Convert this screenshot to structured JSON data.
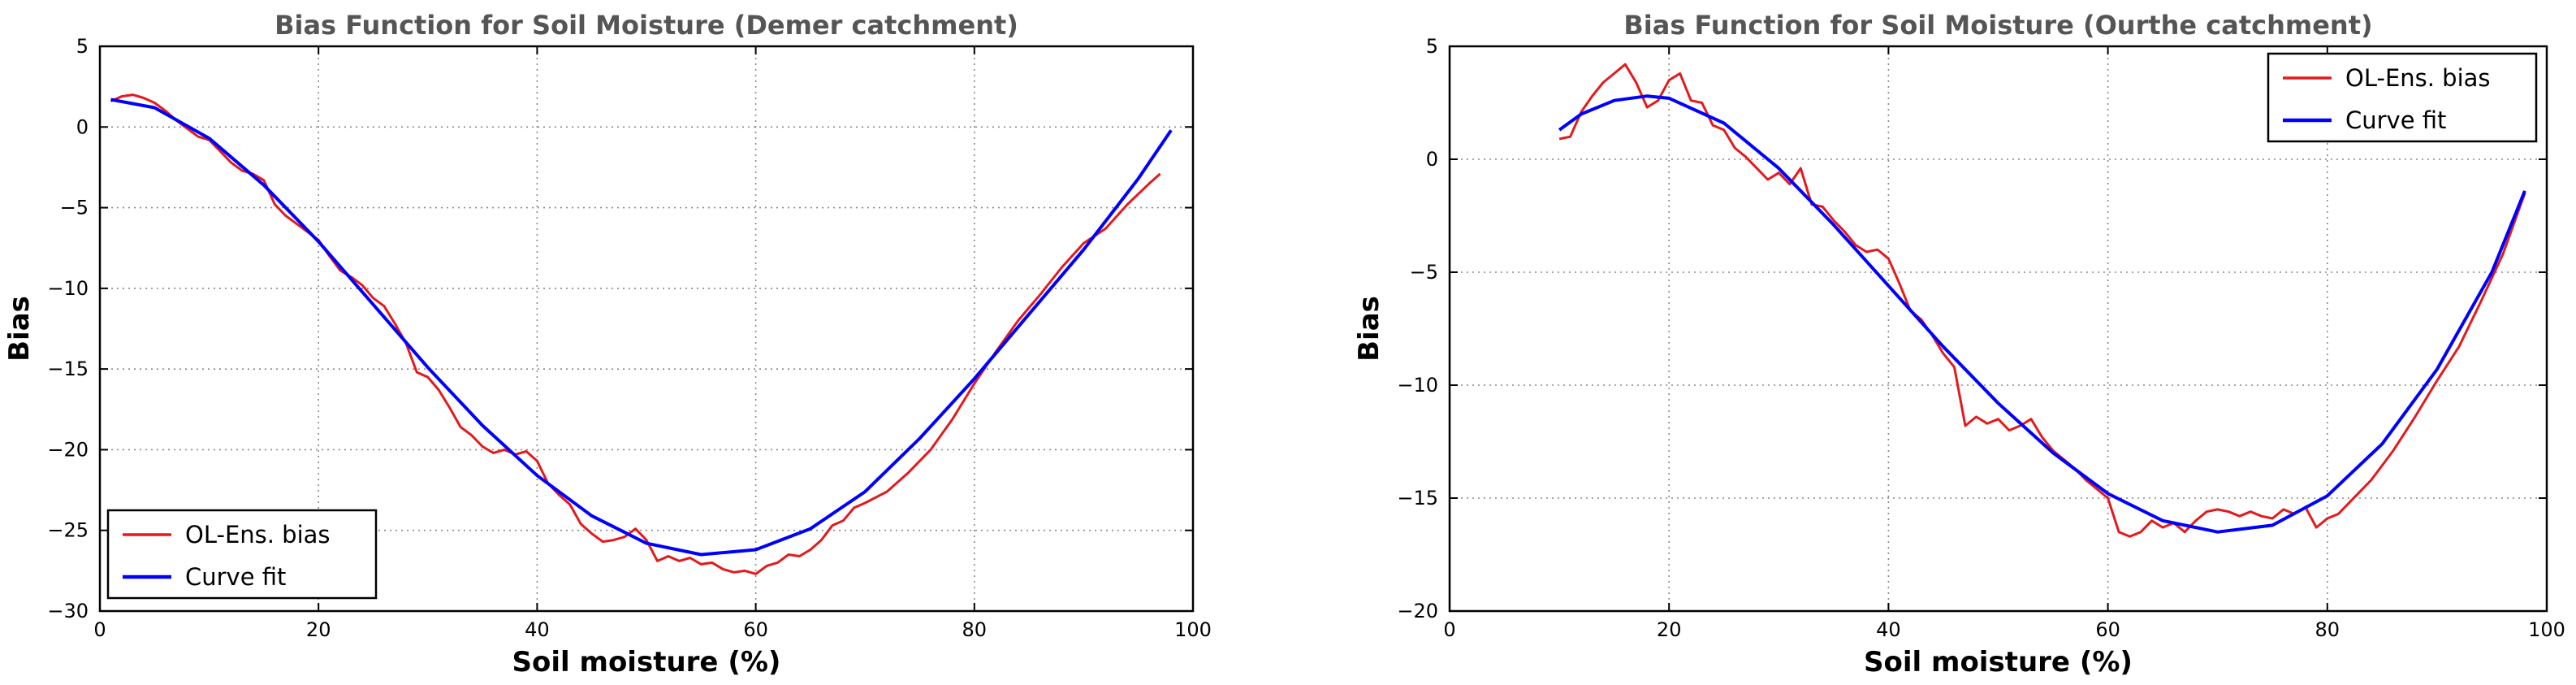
{
  "chart_data": [
    {
      "type": "line",
      "title": "Bias Function for Soil Moisture (Demer catchment)",
      "xlabel": "Soil moisture (%)",
      "ylabel": "Bias",
      "xlim": [
        0,
        100
      ],
      "ylim": [
        -30,
        5
      ],
      "xticks": [
        0,
        20,
        40,
        60,
        80,
        100
      ],
      "yticks": [
        5,
        0,
        -5,
        -10,
        -15,
        -20,
        -25,
        -30
      ],
      "grid": true,
      "legend_position": "lower-left",
      "series": [
        {
          "name": "OL-Ens. bias",
          "color": "#e31a1c",
          "x": [
            1,
            2,
            3,
            4,
            5,
            6,
            7,
            8,
            9,
            10,
            11,
            12,
            13,
            14,
            15,
            16,
            17,
            18,
            19,
            20,
            21,
            22,
            23,
            24,
            25,
            26,
            27,
            28,
            29,
            30,
            31,
            32,
            33,
            34,
            35,
            36,
            37,
            38,
            39,
            40,
            41,
            42,
            43,
            44,
            45,
            46,
            47,
            48,
            49,
            50,
            51,
            52,
            53,
            54,
            55,
            56,
            57,
            58,
            59,
            60,
            61,
            62,
            63,
            64,
            65,
            66,
            67,
            68,
            69,
            70,
            72,
            74,
            76,
            78,
            80,
            82,
            84,
            86,
            88,
            90,
            92,
            94,
            96,
            97
          ],
          "y": [
            1.6,
            1.9,
            2.0,
            1.8,
            1.5,
            1.0,
            0.4,
            -0.1,
            -0.6,
            -0.8,
            -1.5,
            -2.2,
            -2.7,
            -2.9,
            -3.3,
            -4.8,
            -5.5,
            -6.0,
            -6.5,
            -7.0,
            -8.0,
            -8.9,
            -9.3,
            -9.8,
            -10.6,
            -11.1,
            -12.2,
            -13.4,
            -15.2,
            -15.5,
            -16.3,
            -17.4,
            -18.6,
            -19.1,
            -19.8,
            -20.2,
            -20.0,
            -20.3,
            -20.1,
            -20.7,
            -22.1,
            -22.8,
            -23.4,
            -24.6,
            -25.2,
            -25.7,
            -25.6,
            -25.4,
            -24.9,
            -25.6,
            -26.9,
            -26.6,
            -26.9,
            -26.7,
            -27.1,
            -27.0,
            -27.4,
            -27.6,
            -27.5,
            -27.7,
            -27.2,
            -27.0,
            -26.5,
            -26.6,
            -26.2,
            -25.6,
            -24.7,
            -24.4,
            -23.6,
            -23.3,
            -22.6,
            -21.4,
            -20.0,
            -18.1,
            -15.9,
            -13.9,
            -12.0,
            -10.4,
            -8.7,
            -7.2,
            -6.3,
            -4.8,
            -3.5,
            -2.9
          ]
        },
        {
          "name": "Curve fit",
          "color": "#0000ff",
          "x": [
            1,
            5,
            10,
            15,
            20,
            25,
            30,
            35,
            40,
            45,
            50,
            55,
            60,
            65,
            70,
            75,
            80,
            85,
            90,
            95,
            98
          ],
          "y": [
            1.7,
            1.2,
            -0.7,
            -3.6,
            -7.1,
            -11.0,
            -14.9,
            -18.5,
            -21.6,
            -24.1,
            -25.8,
            -26.5,
            -26.2,
            -24.9,
            -22.6,
            -19.3,
            -15.6,
            -11.6,
            -7.6,
            -3.2,
            -0.2
          ]
        }
      ]
    },
    {
      "type": "line",
      "title": "Bias Function for Soil Moisture (Ourthe catchment)",
      "xlabel": "Soil moisture (%)",
      "ylabel": "Bias",
      "xlim": [
        0,
        100
      ],
      "ylim": [
        -20,
        5
      ],
      "xticks": [
        0,
        20,
        40,
        60,
        80,
        100
      ],
      "yticks": [
        5,
        0,
        -5,
        -10,
        -15,
        -20
      ],
      "grid": true,
      "legend_position": "upper-right",
      "series": [
        {
          "name": "OL-Ens. bias",
          "color": "#e31a1c",
          "x": [
            10,
            11,
            12,
            13,
            14,
            15,
            16,
            17,
            18,
            19,
            20,
            21,
            22,
            23,
            24,
            25,
            26,
            27,
            28,
            29,
            30,
            31,
            32,
            33,
            34,
            35,
            36,
            37,
            38,
            39,
            40,
            41,
            42,
            43,
            44,
            45,
            46,
            47,
            48,
            49,
            50,
            51,
            52,
            53,
            54,
            55,
            56,
            57,
            58,
            59,
            60,
            61,
            62,
            63,
            64,
            65,
            66,
            67,
            68,
            69,
            70,
            71,
            72,
            73,
            74,
            75,
            76,
            77,
            78,
            79,
            80,
            81,
            82,
            84,
            86,
            88,
            90,
            92,
            94,
            96,
            98
          ],
          "y": [
            0.9,
            1.0,
            2.1,
            2.8,
            3.4,
            3.8,
            4.2,
            3.4,
            2.3,
            2.6,
            3.5,
            3.8,
            2.6,
            2.5,
            1.5,
            1.3,
            0.5,
            0.1,
            -0.4,
            -0.9,
            -0.6,
            -1.1,
            -0.4,
            -2.0,
            -2.1,
            -2.7,
            -3.2,
            -3.8,
            -4.1,
            -4.0,
            -4.4,
            -5.5,
            -6.7,
            -7.1,
            -7.8,
            -8.6,
            -9.2,
            -11.8,
            -11.4,
            -11.7,
            -11.5,
            -12.0,
            -11.8,
            -11.5,
            -12.3,
            -12.9,
            -13.3,
            -13.7,
            -14.2,
            -14.6,
            -15.0,
            -16.5,
            -16.7,
            -16.5,
            -16.0,
            -16.3,
            -16.1,
            -16.5,
            -16.0,
            -15.6,
            -15.5,
            -15.6,
            -15.8,
            -15.6,
            -15.8,
            -15.9,
            -15.5,
            -15.7,
            -15.4,
            -16.3,
            -15.9,
            -15.7,
            -15.2,
            -14.2,
            -12.9,
            -11.4,
            -9.8,
            -8.3,
            -6.3,
            -4.2,
            -1.5
          ]
        },
        {
          "name": "Curve fit",
          "color": "#0000ff",
          "x": [
            10,
            12,
            15,
            18,
            20,
            25,
            30,
            35,
            40,
            45,
            50,
            55,
            60,
            65,
            70,
            75,
            80,
            85,
            90,
            95,
            98
          ],
          "y": [
            1.3,
            2.0,
            2.6,
            2.8,
            2.7,
            1.6,
            -0.4,
            -2.9,
            -5.6,
            -8.3,
            -10.8,
            -13.0,
            -14.8,
            -16.0,
            -16.5,
            -16.2,
            -14.9,
            -12.6,
            -9.3,
            -5.0,
            -1.4
          ]
        }
      ]
    }
  ]
}
